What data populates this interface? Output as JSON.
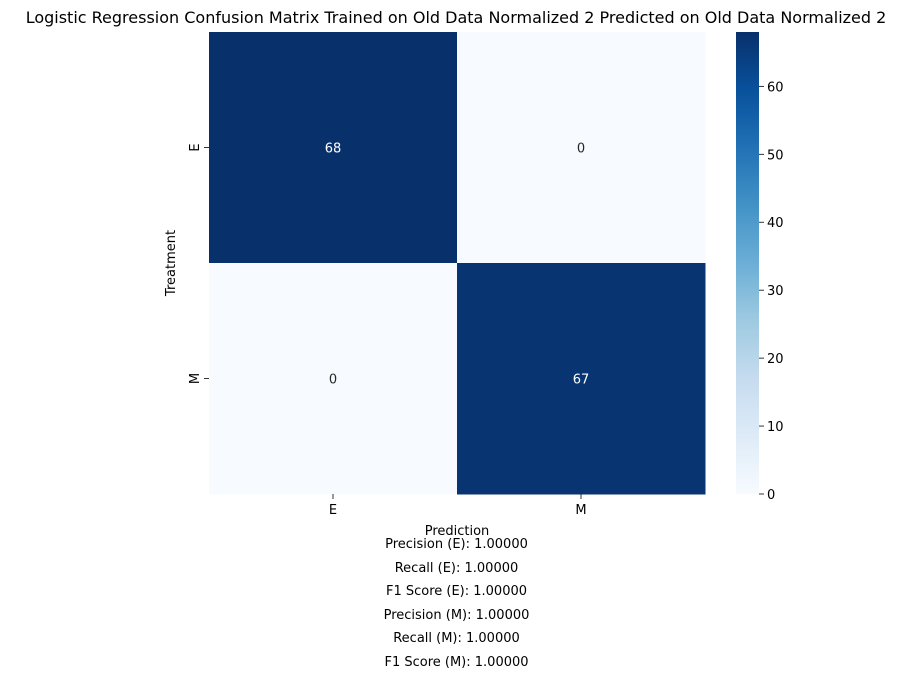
{
  "chart_data": {
    "type": "heatmap",
    "title": "Logistic Regression Confusion Matrix Trained on Old Data Normalized 2 Predicted on Old Data Normalized 2",
    "xlabel": "Prediction",
    "ylabel": "Treatment",
    "x_categories": [
      "E",
      "M"
    ],
    "y_categories": [
      "E",
      "M"
    ],
    "matrix": [
      [
        68,
        0
      ],
      [
        0,
        67
      ]
    ],
    "colormap": "Blues",
    "color_low": "#f7fbff",
    "color_high": "#08306b",
    "colorbar": {
      "range": [
        0,
        68
      ],
      "ticks": [
        0,
        10,
        20,
        30,
        40,
        50,
        60
      ],
      "tick_labels": [
        "0",
        "10",
        "20",
        "30",
        "40",
        "50",
        "60"
      ]
    },
    "grid": false
  },
  "metrics": [
    "Precision (E): 1.00000",
    "Recall (E): 1.00000",
    "F1 Score (E): 1.00000",
    "Precision (M): 1.00000",
    "Recall (M): 1.00000",
    "F1 Score (M): 1.00000"
  ]
}
